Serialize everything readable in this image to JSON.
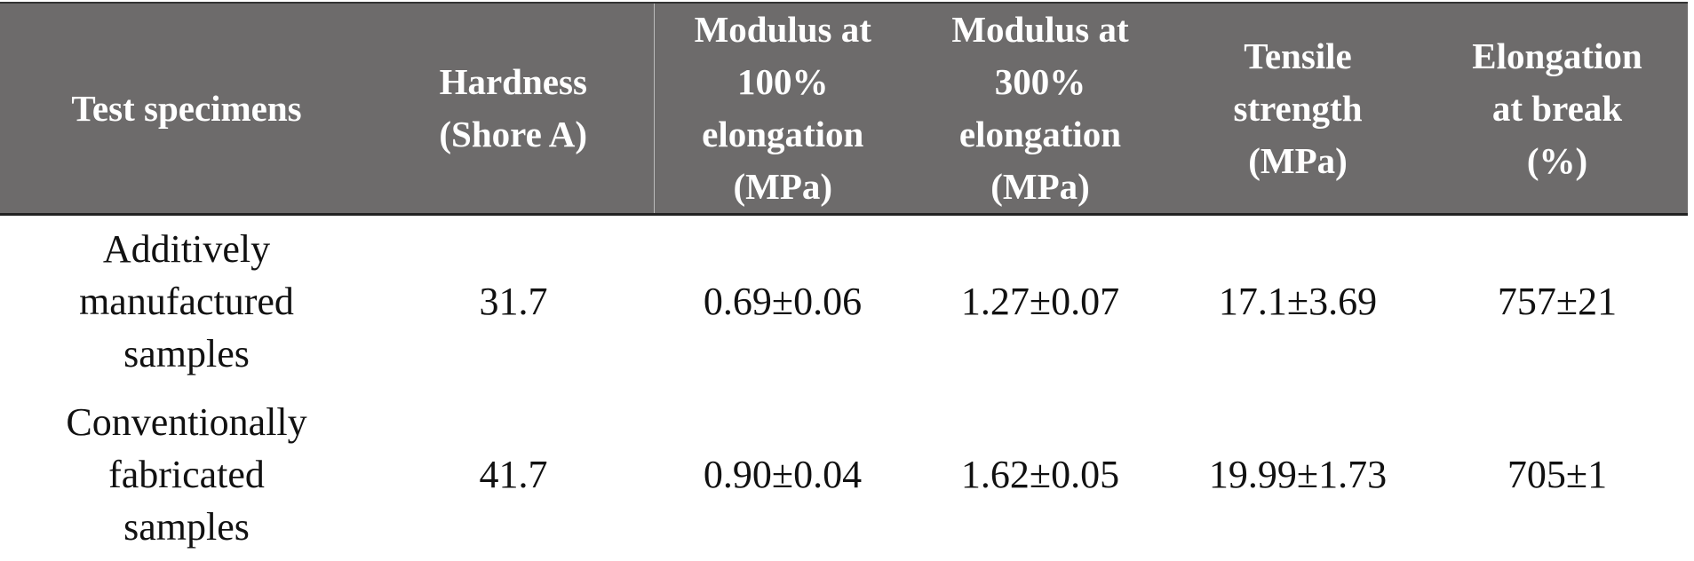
{
  "table": {
    "header": [
      [
        "Test specimens"
      ],
      [
        "Hardness",
        "(Shore A)"
      ],
      [
        "Modulus at",
        "100%",
        "elongation",
        "(MPa)"
      ],
      [
        "Modulus at",
        "300%",
        "elongation",
        "(MPa)"
      ],
      [
        "Tensile",
        "strength",
        "(MPa)"
      ],
      [
        "Elongation",
        "at break",
        "(%)"
      ]
    ],
    "rows": [
      [
        [
          "Additively",
          "manufactured",
          "samples"
        ],
        [
          "31.7"
        ],
        [
          "0.69±0.06"
        ],
        [
          "1.27±0.07"
        ],
        [
          "17.1±3.69"
        ],
        [
          "757±21"
        ]
      ],
      [
        [
          "Conventionally",
          "fabricated",
          "samples"
        ],
        [
          "41.7"
        ],
        [
          "0.90±0.04"
        ],
        [
          "1.62±0.05"
        ],
        [
          "19.99±1.73"
        ],
        [
          "705±1"
        ]
      ]
    ]
  }
}
